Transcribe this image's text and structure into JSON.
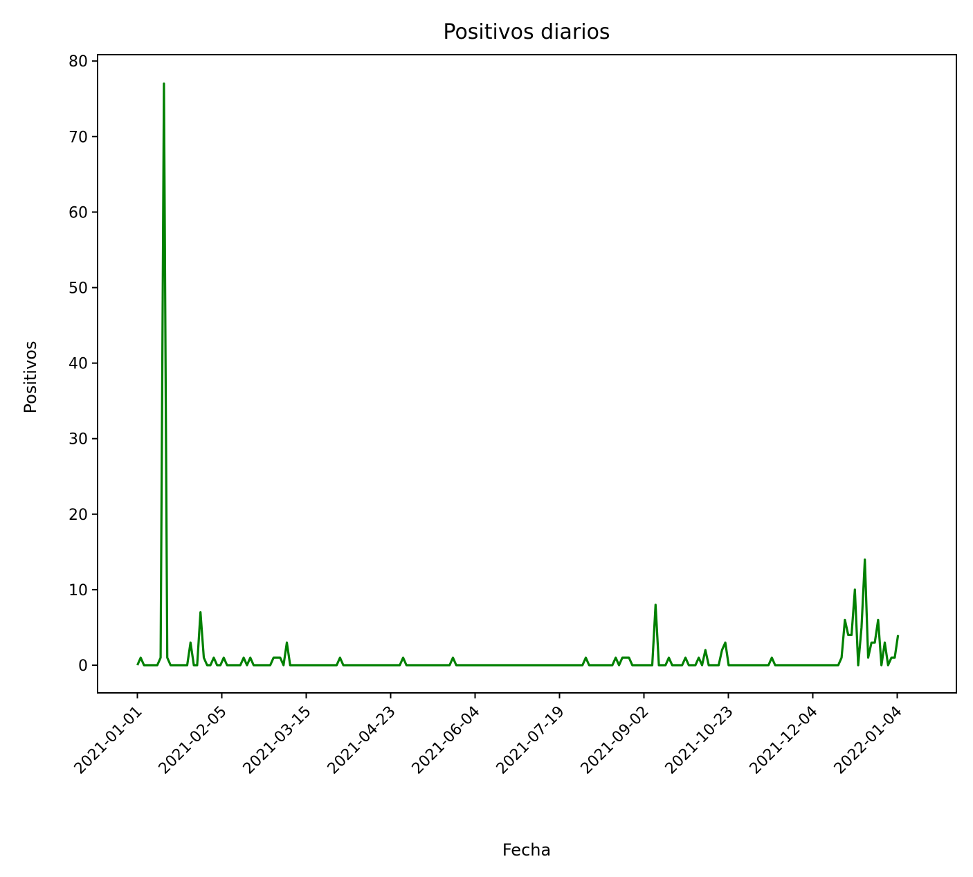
{
  "chart_data": {
    "type": "line",
    "title": "Positivos diarios",
    "xlabel": "Fecha",
    "ylabel": "Positivos",
    "x_tick_labels": [
      "2021-01-01",
      "2021-02-05",
      "2021-03-15",
      "2021-04-23",
      "2021-06-04",
      "2021-07-19",
      "2021-09-02",
      "2021-10-23",
      "2021-12-04",
      "2022-01-04"
    ],
    "y_ticks": [
      0,
      10,
      20,
      30,
      40,
      50,
      60,
      70,
      80
    ],
    "ylim": [
      -4,
      81
    ],
    "grid": false,
    "legend": "none",
    "series": [
      {
        "color": "#008000",
        "points": [
          [
            0,
            0
          ],
          [
            1,
            1
          ],
          [
            2,
            0
          ],
          [
            3,
            0
          ],
          [
            4,
            0
          ],
          [
            5,
            0
          ],
          [
            6,
            0
          ],
          [
            7,
            1
          ],
          [
            8,
            77
          ],
          [
            9,
            1
          ],
          [
            10,
            0
          ],
          [
            11,
            0
          ],
          [
            12,
            0
          ],
          [
            13,
            0
          ],
          [
            14,
            0
          ],
          [
            15,
            0
          ],
          [
            16,
            3
          ],
          [
            17,
            0
          ],
          [
            18,
            0
          ],
          [
            19,
            7
          ],
          [
            20,
            1
          ],
          [
            21,
            0
          ],
          [
            22,
            0
          ],
          [
            23,
            1
          ],
          [
            24,
            0
          ],
          [
            25,
            0
          ],
          [
            26,
            1
          ],
          [
            27,
            0
          ],
          [
            28,
            0
          ],
          [
            29,
            0
          ],
          [
            30,
            0
          ],
          [
            31,
            0
          ],
          [
            32,
            1
          ],
          [
            33,
            0
          ],
          [
            34,
            1
          ],
          [
            35,
            0
          ],
          [
            36,
            0
          ],
          [
            37,
            0
          ],
          [
            38,
            0
          ],
          [
            39,
            0
          ],
          [
            40,
            0
          ],
          [
            41,
            1
          ],
          [
            42,
            1
          ],
          [
            43,
            1
          ],
          [
            44,
            0
          ],
          [
            45,
            3
          ],
          [
            46,
            0
          ],
          [
            47,
            0
          ],
          [
            48,
            0
          ],
          [
            60,
            0
          ],
          [
            61,
            1
          ],
          [
            62,
            0
          ],
          [
            63,
            0
          ],
          [
            79,
            0
          ],
          [
            80,
            1
          ],
          [
            81,
            0
          ],
          [
            82,
            0
          ],
          [
            94,
            0
          ],
          [
            95,
            1
          ],
          [
            96,
            0
          ],
          [
            97,
            0
          ],
          [
            134,
            0
          ],
          [
            135,
            1
          ],
          [
            136,
            0
          ],
          [
            137,
            0
          ],
          [
            143,
            0
          ],
          [
            144,
            1
          ],
          [
            145,
            0
          ],
          [
            146,
            1
          ],
          [
            147,
            1
          ],
          [
            148,
            1
          ],
          [
            149,
            0
          ],
          [
            150,
            0
          ],
          [
            155,
            0
          ],
          [
            156,
            8
          ],
          [
            157,
            0
          ],
          [
            158,
            0
          ],
          [
            159,
            0
          ],
          [
            160,
            1
          ],
          [
            161,
            0
          ],
          [
            162,
            0
          ],
          [
            163,
            0
          ],
          [
            164,
            0
          ],
          [
            165,
            1
          ],
          [
            166,
            0
          ],
          [
            167,
            0
          ],
          [
            168,
            0
          ],
          [
            169,
            1
          ],
          [
            170,
            0
          ],
          [
            171,
            2
          ],
          [
            172,
            0
          ],
          [
            173,
            0
          ],
          [
            174,
            0
          ],
          [
            175,
            0
          ],
          [
            176,
            2
          ],
          [
            177,
            3
          ],
          [
            178,
            0
          ],
          [
            179,
            0
          ],
          [
            190,
            0
          ],
          [
            191,
            1
          ],
          [
            192,
            0
          ],
          [
            193,
            0
          ],
          [
            211,
            0
          ],
          [
            212,
            1
          ],
          [
            213,
            6
          ],
          [
            214,
            4
          ],
          [
            215,
            4
          ],
          [
            216,
            10
          ],
          [
            217,
            0
          ],
          [
            218,
            5
          ],
          [
            219,
            14
          ],
          [
            220,
            1
          ],
          [
            221,
            3
          ],
          [
            222,
            3
          ],
          [
            223,
            6
          ],
          [
            224,
            0
          ],
          [
            225,
            3
          ],
          [
            226,
            0
          ],
          [
            227,
            1
          ],
          [
            228,
            1
          ],
          [
            229,
            4
          ]
        ]
      }
    ]
  }
}
